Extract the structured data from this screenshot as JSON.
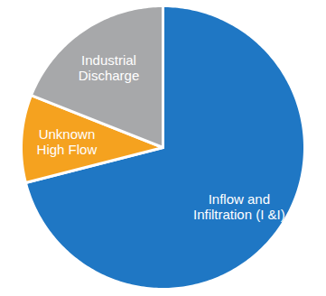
{
  "chart_data": {
    "type": "pie",
    "categories": [
      "Inflow and\nInfiltration (I &I)",
      "Unknown\nHigh Flow",
      "Industrial\nDischarge"
    ],
    "values": [
      71,
      10,
      19
    ],
    "colors": [
      "#1f77c4",
      "#f5a21f",
      "#a7a8aa"
    ]
  }
}
